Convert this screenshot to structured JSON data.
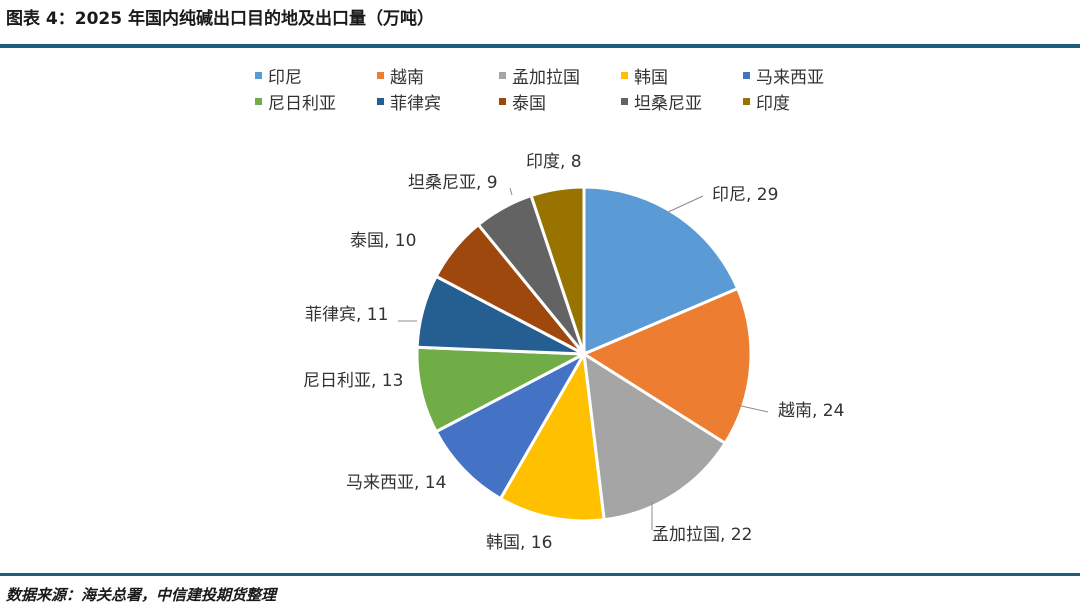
{
  "header": {
    "title": "图表 4：2025 年国内纯碱出口目的地及出口量（万吨）"
  },
  "footer": {
    "source": "数据来源：海关总署，中信建投期货整理"
  },
  "chart_data": {
    "type": "pie",
    "title": "",
    "unit": "万吨",
    "legend_position": "top",
    "categories": [
      "印尼",
      "越南",
      "孟加拉国",
      "韩国",
      "马来西亚",
      "尼日利亚",
      "菲律宾",
      "泰国",
      "坦桑尼亚",
      "印度"
    ],
    "values": [
      29,
      24,
      22,
      16,
      14,
      13,
      11,
      10,
      9,
      8
    ],
    "colors": [
      "#5b9bd5",
      "#ed7d31",
      "#a5a5a5",
      "#ffc000",
      "#4472c4",
      "#70ad47",
      "#255e91",
      "#9e480e",
      "#636363",
      "#997300"
    ],
    "data_labels": [
      "印尼, 29",
      "越南, 24",
      "孟加拉国, 22",
      "韩国, 16",
      "马来西亚, 14",
      "尼日利亚, 13",
      "菲律宾, 11",
      "泰国, 10",
      "坦桑尼亚, 9",
      "印度, 8"
    ]
  }
}
